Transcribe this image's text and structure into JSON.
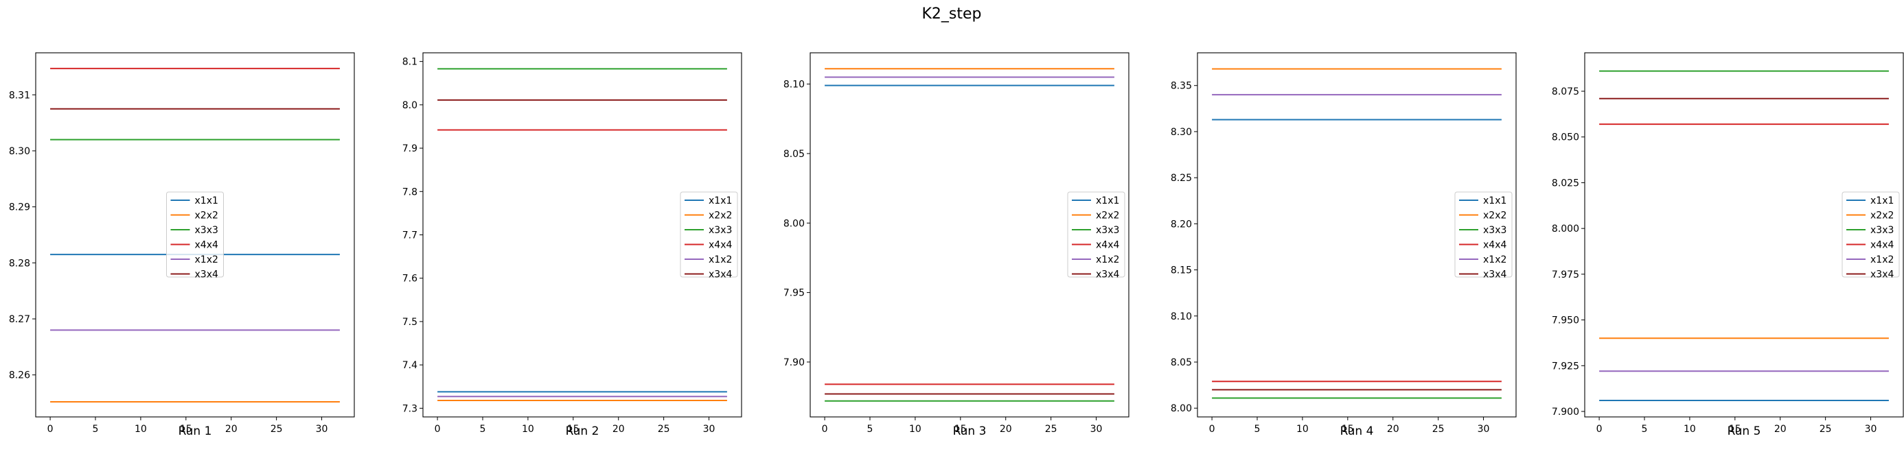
{
  "figure": {
    "title": "K2_step"
  },
  "chart_data": [
    {
      "type": "line",
      "title": "",
      "xlabel": "Run 1",
      "ylabel": "",
      "xlim": [
        -1.6,
        33.6
      ],
      "ylim": [
        8.2525,
        8.3175
      ],
      "xticks": [
        0,
        5,
        10,
        15,
        20,
        25,
        30
      ],
      "yticks": [
        8.26,
        8.27,
        8.28,
        8.29,
        8.3,
        8.31
      ],
      "ytick_decimals": 2,
      "legend": "center",
      "x_range": [
        0,
        32
      ],
      "series": [
        {
          "name": "x1x1",
          "value": 8.2815,
          "color": "#1f77b4"
        },
        {
          "name": "x2x2",
          "value": 8.2552,
          "color": "#ff7f0e"
        },
        {
          "name": "x3x3",
          "value": 8.302,
          "color": "#2ca02c"
        },
        {
          "name": "x4x4",
          "value": 8.3147,
          "color": "#d62728"
        },
        {
          "name": "x1x2",
          "value": 8.268,
          "color": "#9467bd"
        },
        {
          "name": "x3x4",
          "value": 8.3075,
          "color": "#8c1c1c"
        }
      ]
    },
    {
      "type": "line",
      "title": "",
      "xlabel": "Run 2",
      "ylabel": "",
      "xlim": [
        -1.6,
        33.6
      ],
      "ylim": [
        7.28,
        8.12
      ],
      "xticks": [
        0,
        5,
        10,
        15,
        20,
        25,
        30
      ],
      "yticks": [
        7.3,
        7.4,
        7.5,
        7.6,
        7.7,
        7.8,
        7.9,
        8.0,
        8.1
      ],
      "ytick_decimals": 1,
      "legend": "center right",
      "x_range": [
        0,
        32
      ],
      "series": [
        {
          "name": "x1x1",
          "value": 7.338,
          "color": "#1f77b4"
        },
        {
          "name": "x2x2",
          "value": 7.318,
          "color": "#ff7f0e"
        },
        {
          "name": "x3x3",
          "value": 8.083,
          "color": "#2ca02c"
        },
        {
          "name": "x4x4",
          "value": 7.942,
          "color": "#d62728"
        },
        {
          "name": "x1x2",
          "value": 7.327,
          "color": "#9467bd"
        },
        {
          "name": "x3x4",
          "value": 8.011,
          "color": "#8c1c1c"
        }
      ]
    },
    {
      "type": "line",
      "title": "",
      "xlabel": "Run 3",
      "ylabel": "",
      "xlim": [
        -1.6,
        33.6
      ],
      "ylim": [
        7.8605,
        8.1225
      ],
      "xticks": [
        0,
        5,
        10,
        15,
        20,
        25,
        30
      ],
      "yticks": [
        7.9,
        7.95,
        8.0,
        8.05,
        8.1
      ],
      "ytick_decimals": 2,
      "legend": "center right",
      "x_range": [
        0,
        32
      ],
      "series": [
        {
          "name": "x1x1",
          "value": 8.099,
          "color": "#1f77b4"
        },
        {
          "name": "x2x2",
          "value": 8.111,
          "color": "#ff7f0e"
        },
        {
          "name": "x3x3",
          "value": 7.872,
          "color": "#2ca02c"
        },
        {
          "name": "x4x4",
          "value": 7.884,
          "color": "#d62728"
        },
        {
          "name": "x1x2",
          "value": 8.105,
          "color": "#9467bd"
        },
        {
          "name": "x3x4",
          "value": 7.877,
          "color": "#8c1c1c"
        }
      ]
    },
    {
      "type": "line",
      "title": "",
      "xlabel": "Run 4",
      "ylabel": "",
      "xlim": [
        -1.6,
        33.6
      ],
      "ylim": [
        7.9905,
        8.3855
      ],
      "xticks": [
        0,
        5,
        10,
        15,
        20,
        25,
        30
      ],
      "yticks": [
        8.0,
        8.05,
        8.1,
        8.15,
        8.2,
        8.25,
        8.3,
        8.35
      ],
      "ytick_decimals": 2,
      "legend": "center right",
      "x_range": [
        0,
        32
      ],
      "series": [
        {
          "name": "x1x1",
          "value": 8.313,
          "color": "#1f77b4"
        },
        {
          "name": "x2x2",
          "value": 8.368,
          "color": "#ff7f0e"
        },
        {
          "name": "x3x3",
          "value": 8.011,
          "color": "#2ca02c"
        },
        {
          "name": "x4x4",
          "value": 8.029,
          "color": "#d62728"
        },
        {
          "name": "x1x2",
          "value": 8.34,
          "color": "#9467bd"
        },
        {
          "name": "x3x4",
          "value": 8.02,
          "color": "#8c1c1c"
        }
      ]
    },
    {
      "type": "line",
      "title": "",
      "xlabel": "Run 5",
      "ylabel": "",
      "xlim": [
        -1.6,
        33.6
      ],
      "ylim": [
        7.897,
        8.096
      ],
      "xticks": [
        0,
        5,
        10,
        15,
        20,
        25,
        30
      ],
      "yticks": [
        7.9,
        7.925,
        7.95,
        7.975,
        8.0,
        8.025,
        8.05,
        8.075
      ],
      "ytick_decimals": 3,
      "legend": "center right",
      "x_range": [
        0,
        32
      ],
      "series": [
        {
          "name": "x1x1",
          "value": 7.906,
          "color": "#1f77b4"
        },
        {
          "name": "x2x2",
          "value": 7.94,
          "color": "#ff7f0e"
        },
        {
          "name": "x3x3",
          "value": 8.086,
          "color": "#2ca02c"
        },
        {
          "name": "x4x4",
          "value": 8.057,
          "color": "#d62728"
        },
        {
          "name": "x1x2",
          "value": 7.922,
          "color": "#9467bd"
        },
        {
          "name": "x3x4",
          "value": 8.071,
          "color": "#8c1c1c"
        }
      ]
    }
  ]
}
